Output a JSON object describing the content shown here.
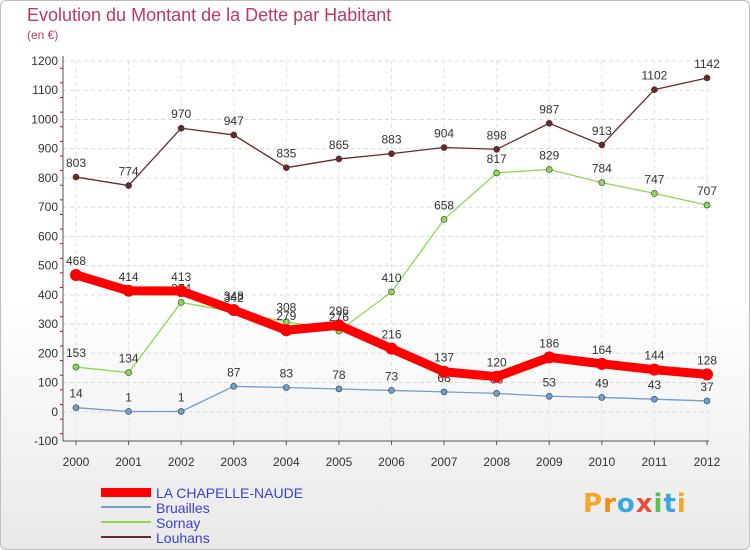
{
  "header": {
    "title": "Evolution du Montant de la Dette par Habitant",
    "subtitle": "(en €)"
  },
  "brand": {
    "text": "Proxiti"
  },
  "chart_data": {
    "type": "line",
    "x": [
      "2000",
      "2001",
      "2002",
      "2003",
      "2004",
      "2005",
      "2006",
      "2007",
      "2008",
      "2009",
      "2010",
      "2011",
      "2012"
    ],
    "y_ticks": [
      "-100",
      "0",
      "100",
      "200",
      "300",
      "400",
      "500",
      "600",
      "700",
      "800",
      "900",
      "1000",
      "1100",
      "1200"
    ],
    "ylim": [
      -100,
      1200
    ],
    "grid": true,
    "legend_position": "bottom-left",
    "series": [
      {
        "name": "LA CHAPELLE-NAUDE",
        "color": "#ff0000",
        "values": [
          468,
          414,
          413,
          348,
          279,
          296,
          216,
          137,
          120,
          186,
          164,
          144,
          128
        ],
        "labels": [
          "468",
          "414",
          "413",
          "348",
          "279",
          "296",
          "216",
          "137",
          "120",
          "186",
          "164",
          "144",
          "128"
        ]
      },
      {
        "name": "Bruailles",
        "color": "#6f9fcf",
        "values": [
          14,
          1,
          1,
          87,
          83,
          78,
          73,
          68,
          63,
          53,
          49,
          43,
          37
        ],
        "labels": [
          "14",
          "1",
          "1",
          "87",
          "83",
          "78",
          "73",
          "68",
          "63",
          "53",
          "49",
          "43",
          "37"
        ]
      },
      {
        "name": "Sornay",
        "color": "#8ed854",
        "values": [
          153,
          134,
          374,
          342,
          308,
          276,
          410,
          658,
          817,
          829,
          784,
          747,
          707
        ],
        "labels": [
          "153",
          "134",
          "374",
          "342",
          "308",
          "276",
          "410",
          "658",
          "817",
          "829",
          "784",
          "747",
          "707"
        ]
      },
      {
        "name": "Louhans",
        "color": "#6b2a2a",
        "values": [
          803,
          774,
          970,
          947,
          835,
          865,
          883,
          904,
          898,
          987,
          913,
          1102,
          1142
        ],
        "labels": [
          "803",
          "774",
          "970",
          "947",
          "835",
          "865",
          "883",
          "904",
          "898",
          "987",
          "913",
          "1102",
          "1142"
        ]
      }
    ]
  }
}
